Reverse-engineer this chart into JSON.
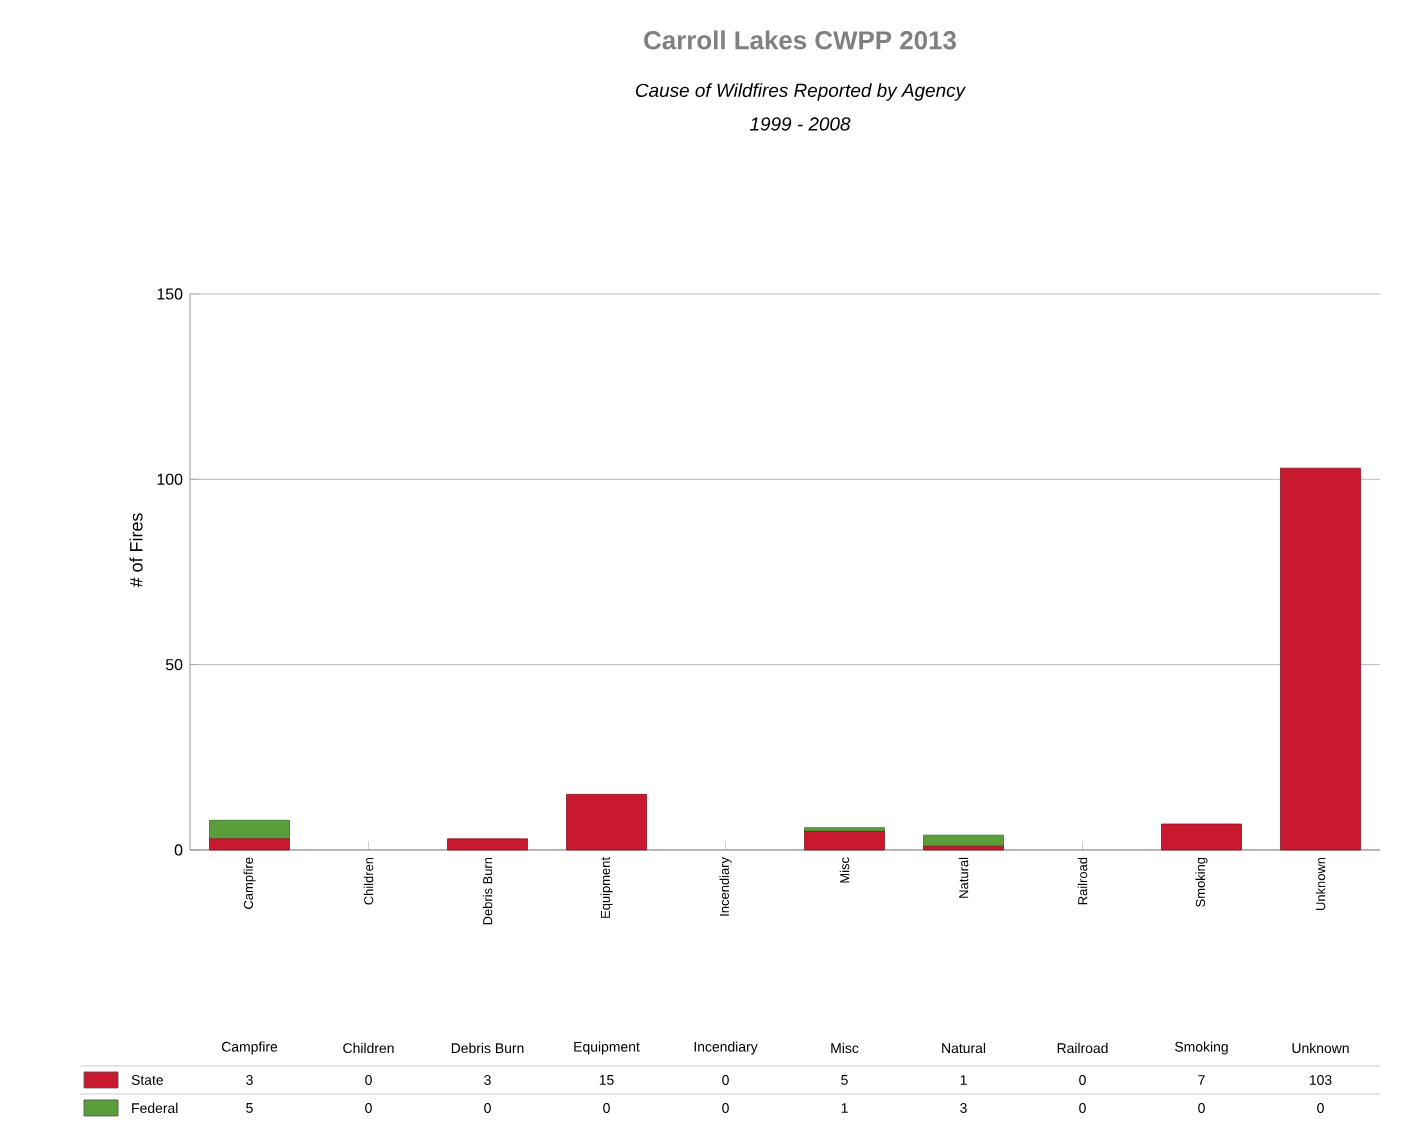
{
  "chart_data": {
    "type": "bar",
    "title": "Carroll Lakes CWPP 2013",
    "subtitle": "Cause of Wildfires Reported by Agency",
    "annotations": [
      "1999 - 2008"
    ],
    "ylabel": "# of Fires",
    "categories": [
      "Campfire",
      "Children",
      "Debris Burn",
      "Equipment",
      "Incendiary",
      "Misc",
      "Natural",
      "Railroad",
      "Smoking",
      "Unknown"
    ],
    "series": [
      {
        "name": "State",
        "color": "#c8192e",
        "values": [
          3,
          0,
          3,
          15,
          0,
          5,
          1,
          0,
          7,
          103
        ],
        "value_labels": [
          "3",
          "0",
          "3",
          "15",
          "0",
          "5",
          "1",
          "0",
          "7",
          "103"
        ]
      },
      {
        "name": "Federal",
        "color": "#5a9e3c",
        "values": [
          5,
          0,
          0,
          0,
          0,
          1,
          3,
          0,
          0,
          0
        ],
        "value_labels": [
          "5",
          "0",
          "0",
          "0",
          "0",
          "1",
          "3",
          "0",
          "0",
          "0"
        ]
      }
    ],
    "stacked": true,
    "ylim": [
      0,
      150
    ],
    "yticks": [
      0,
      50,
      100,
      150
    ],
    "grid": "y",
    "legend": "bottom"
  }
}
